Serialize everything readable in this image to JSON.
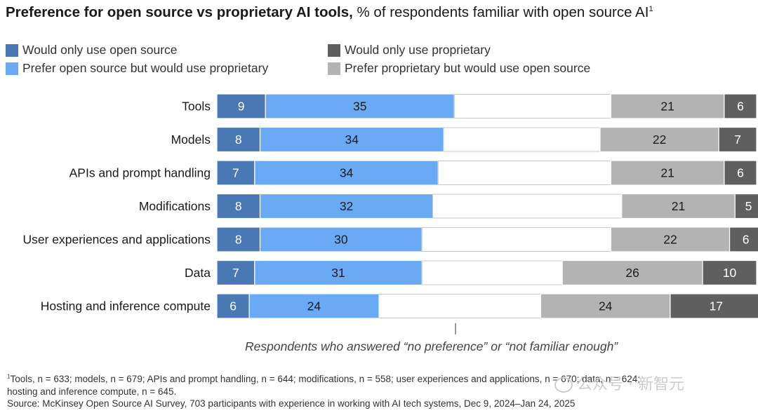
{
  "header": {
    "title_bold": "Preference for open source vs proprietary AI tools,",
    "title_rest": " % of respondents familiar with open source AI",
    "title_sup": "1"
  },
  "legend": [
    {
      "label": "Would only use open source",
      "color": "#4a78b5"
    },
    {
      "label": "Prefer open source but would use proprietary",
      "color": "#6aaaf5"
    },
    {
      "label": "Would only use proprietary",
      "color": "#5f5f5f"
    },
    {
      "label": "Prefer proprietary but would use open source",
      "color": "#b3b3b3"
    }
  ],
  "chart_data": {
    "type": "bar",
    "orientation": "horizontal",
    "stacked": true,
    "categories": [
      "Tools",
      "Models",
      "APIs and prompt handling",
      "Modifications",
      "User experiences and applications",
      "Data",
      "Hosting and inference compute"
    ],
    "series": [
      {
        "name": "Would only use open source",
        "values": [
          9,
          8,
          7,
          8,
          8,
          7,
          6
        ],
        "color": "#4a78b5"
      },
      {
        "name": "Prefer open source but would use proprietary",
        "values": [
          35,
          34,
          34,
          32,
          30,
          31,
          24
        ],
        "color": "#6aaaf5"
      },
      {
        "name": "",
        "values": [
          29,
          29,
          32,
          35,
          35,
          26,
          30
        ],
        "color": "#ffffff",
        "hidden_label": true
      },
      {
        "name": "Prefer proprietary but would use open source",
        "values": [
          21,
          22,
          21,
          21,
          22,
          26,
          24
        ],
        "color": "#b3b3b3"
      },
      {
        "name": "Would only use proprietary",
        "values": [
          6,
          7,
          6,
          5,
          6,
          10,
          17
        ],
        "color": "#5f5f5f"
      }
    ],
    "xlim": [
      0,
      100
    ],
    "grid": false
  },
  "annotation": {
    "caption": "Respondents who answered “no preference” or “not familiar enough”"
  },
  "footnotes": {
    "line1_sup": "1",
    "line1": "Tools, n = 633; models, n = 679; APIs and prompt handling, n = 644; modifications, n = 558; user experiences and applications, n = 670; data, n = 624;",
    "line2": "hosting and inference compute, n = 645.",
    "line3": "Source: McKinsey Open Source AI Survey, 703 participants with experience in working with AI tech systems, Dec 9, 2024–Jan 24, 2025"
  },
  "watermark": {
    "text": "公众号 · 新智元"
  }
}
